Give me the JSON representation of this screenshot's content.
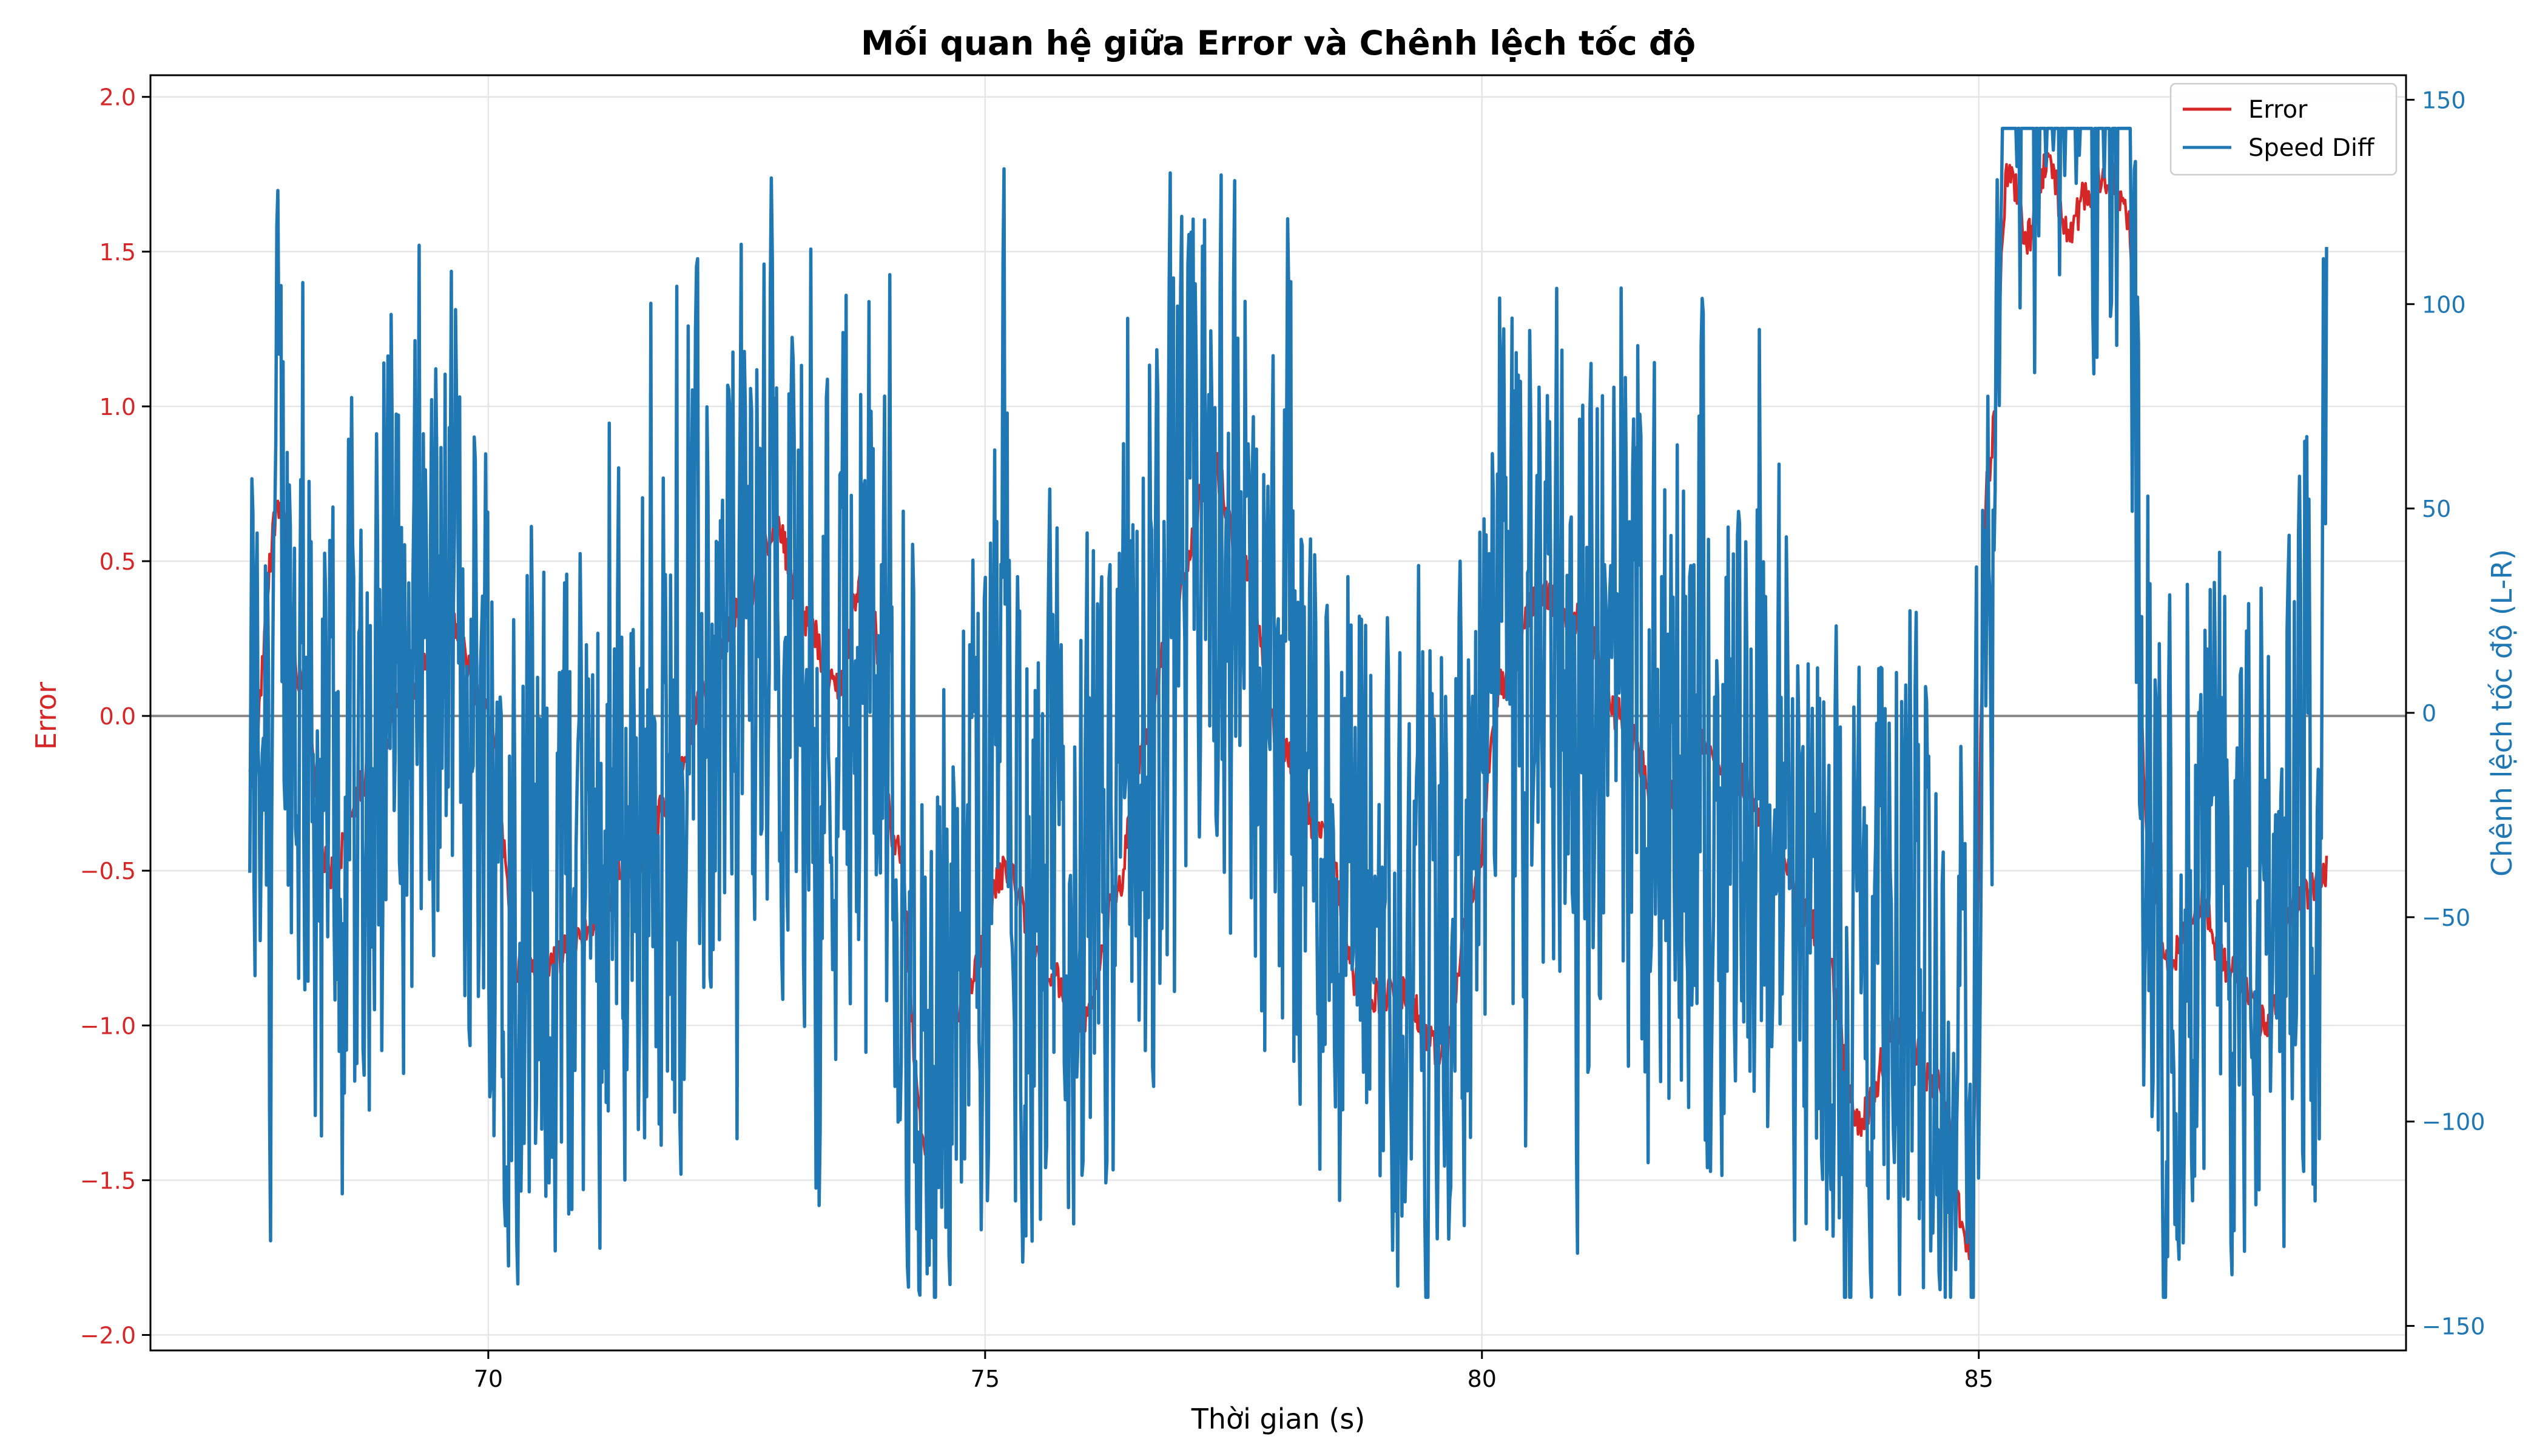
{
  "chart_data": {
    "type": "line",
    "title": "Mối quan hệ giữa Error và Chênh lệch tốc độ",
    "xlabel": "Thời gian (s)",
    "ylabel_left": "Error",
    "ylabel_right": "Chênh lệch tốc độ (L-R)",
    "xlim": [
      66.6,
      89.3
    ],
    "ylim_left": [
      -2.05,
      2.07
    ],
    "ylim_right": [
      -156,
      156
    ],
    "x_ticks": [
      70,
      75,
      80,
      85
    ],
    "y_ticks_left": [
      2.0,
      1.5,
      1.0,
      0.5,
      0.0,
      -0.5,
      -1.0,
      -1.5,
      -2.0
    ],
    "y_ticks_left_labels": [
      "2.0",
      "1.5",
      "1.0",
      "0.5",
      "0.0",
      "−0.5",
      "−1.0",
      "−1.5",
      "−2.0"
    ],
    "y_ticks_right": [
      150,
      100,
      50,
      0,
      -50,
      -100,
      -150
    ],
    "y_ticks_right_labels": [
      "150",
      "100",
      "50",
      "0",
      "−50",
      "−100",
      "−150"
    ],
    "grid": true,
    "legend_position": "top-right",
    "zero_line": 0,
    "x_range": [
      67.6,
      88.5
    ],
    "error_keyframes": {
      "t": [
        67.6,
        67.9,
        68.1,
        68.4,
        68.8,
        69.2,
        69.6,
        70.0,
        70.3,
        70.6,
        71.0,
        71.4,
        71.8,
        72.2,
        72.6,
        72.9,
        73.2,
        73.5,
        73.8,
        74.1,
        74.4,
        74.8,
        75.2,
        75.6,
        76.0,
        76.3,
        76.6,
        76.9,
        77.3,
        77.6,
        78.0,
        78.4,
        78.8,
        79.2,
        79.6,
        79.9,
        80.2,
        80.6,
        81.0,
        81.4,
        81.8,
        82.2,
        82.6,
        83.0,
        83.4,
        83.8,
        84.2,
        84.6,
        84.9,
        85.1,
        85.3,
        85.5,
        85.7,
        85.9,
        86.1,
        86.3,
        86.5,
        86.7,
        86.9,
        87.2,
        87.5,
        87.9,
        88.2,
        88.5
      ],
      "v": [
        -0.2,
        0.7,
        0.1,
        -0.5,
        -0.2,
        0.1,
        0.3,
        0.0,
        -0.8,
        -0.8,
        -0.7,
        -0.5,
        -0.3,
        0.1,
        0.4,
        0.6,
        0.3,
        0.1,
        0.5,
        -0.4,
        -1.4,
        -0.9,
        -0.5,
        -0.8,
        -1.0,
        -0.6,
        -0.1,
        0.4,
        0.8,
        0.5,
        -0.1,
        -0.4,
        -0.9,
        -0.9,
        -1.1,
        -0.6,
        0.1,
        0.4,
        0.3,
        0.0,
        -0.3,
        -0.1,
        -0.2,
        -0.5,
        -0.7,
        -1.3,
        -1.0,
        -1.2,
        -1.7,
        0.8,
        1.75,
        1.55,
        1.8,
        1.55,
        1.7,
        1.75,
        1.6,
        -0.4,
        -0.8,
        -0.6,
        -0.8,
        -1.0,
        -0.6,
        -0.5
      ]
    },
    "series": [
      {
        "name": "Error",
        "axis": "left",
        "color": "#d62728"
      },
      {
        "name": "Speed Diff",
        "axis": "right",
        "color": "#1f77b4",
        "saturation": 143
      }
    ]
  }
}
